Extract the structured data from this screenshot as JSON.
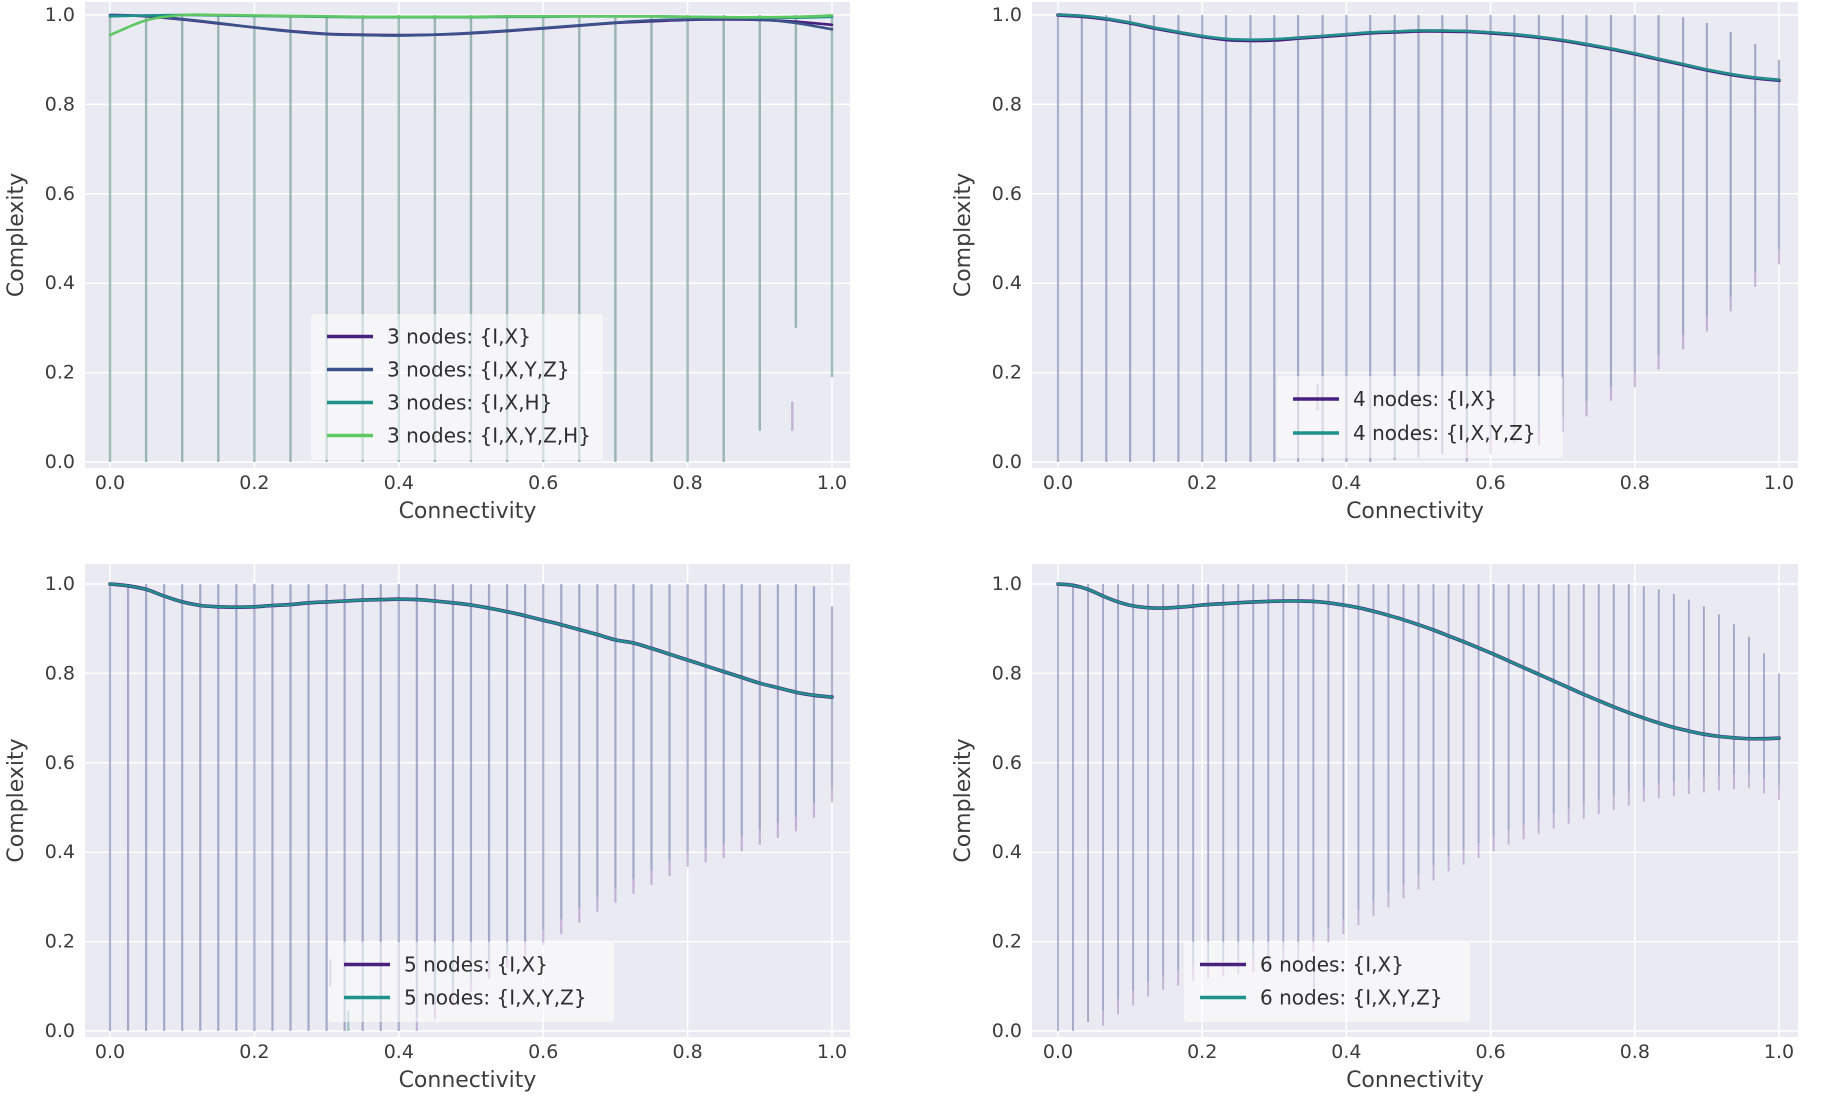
{
  "figure": {
    "background": "#ffffff",
    "plot_bg": "#eaeaf2",
    "grid_color": "#ffffff",
    "text_color": "#3d3d3d",
    "legend_text_color": "#2f2f2f",
    "legend_bg": "rgba(255,255,255,0.55)",
    "accent_tip_color": "rgba(158,122,182,0.5)"
  },
  "chart_data": [
    {
      "id": "3-nodes",
      "type": "line",
      "xlabel": "Connectivity",
      "ylabel": "Complexity",
      "xlim": [
        0,
        1
      ],
      "ylim": [
        0,
        1
      ],
      "xticks": [
        "0.0",
        "0.2",
        "0.4",
        "0.6",
        "0.8",
        "1.0"
      ],
      "yticks": [
        "0.0",
        "0.2",
        "0.4",
        "0.6",
        "0.8",
        "1.0"
      ],
      "grid": true,
      "legend_position": "lower center",
      "x": [
        0,
        0.05,
        0.1,
        0.15,
        0.2,
        0.25,
        0.3,
        0.35,
        0.4,
        0.45,
        0.5,
        0.55,
        0.6,
        0.65,
        0.7,
        0.75,
        0.8,
        0.85,
        0.9,
        0.95,
        1
      ],
      "series": [
        {
          "name": "3 nodes: {I,X}",
          "color": "#48207e",
          "width": 2.6,
          "values": [
            1.0,
            0.997,
            0.99,
            0.981,
            0.972,
            0.964,
            0.958,
            0.956,
            0.955,
            0.956,
            0.959,
            0.964,
            0.97,
            0.976,
            0.982,
            0.986,
            0.989,
            0.99,
            0.989,
            0.985,
            0.978
          ]
        },
        {
          "name": "3 nodes: {I,X,Y,Z}",
          "color": "#3b528b",
          "width": 2.6,
          "values": [
            1.0,
            0.998,
            0.991,
            0.982,
            0.972,
            0.963,
            0.957,
            0.955,
            0.954,
            0.956,
            0.96,
            0.965,
            0.971,
            0.977,
            0.983,
            0.988,
            0.99,
            0.991,
            0.99,
            0.982,
            0.968
          ]
        },
        {
          "name": "3 nodes: {I,X,H}",
          "color": "#21918c",
          "width": 2.6,
          "values": [
            0.997,
            0.999,
            1.0,
            0.999,
            0.998,
            0.997,
            0.996,
            0.995,
            0.995,
            0.995,
            0.995,
            0.996,
            0.996,
            0.997,
            0.997,
            0.997,
            0.996,
            0.995,
            0.994,
            0.994,
            0.996
          ]
        },
        {
          "name": "3 nodes: {I,X,Y,Z,H}",
          "color": "#5ec962",
          "width": 2.6,
          "values": [
            0.955,
            0.988,
            1.0,
            1.0,
            0.999,
            0.998,
            0.997,
            0.996,
            0.996,
            0.996,
            0.996,
            0.997,
            0.997,
            0.997,
            0.997,
            0.997,
            0.996,
            0.995,
            0.995,
            0.996,
            0.999
          ]
        }
      ],
      "error_bars": {
        "color": "rgba(74,126,114,0.5)",
        "bar_width": 2.4,
        "tips": false,
        "low": [
          0,
          0,
          0,
          0,
          0,
          0,
          0,
          0,
          0,
          0,
          0,
          0,
          0,
          0,
          0,
          0,
          0,
          0,
          0.07,
          0.3,
          0.19
        ],
        "high": [
          1,
          1,
          1,
          1,
          1,
          1,
          1,
          1,
          1,
          1,
          1,
          1,
          1,
          1,
          1,
          1,
          1,
          1,
          1,
          1,
          1
        ]
      },
      "accent_marks": [
        {
          "x": 0.945,
          "y0": 0.07,
          "y1": 0.135
        }
      ]
    },
    {
      "id": "4-nodes",
      "type": "line",
      "xlabel": "Connectivity",
      "ylabel": "Complexity",
      "xlim": [
        0,
        1
      ],
      "ylim": [
        0,
        1
      ],
      "xticks": [
        "0.0",
        "0.2",
        "0.4",
        "0.6",
        "0.8",
        "1.0"
      ],
      "yticks": [
        "0.0",
        "0.2",
        "0.4",
        "0.6",
        "0.8",
        "1.0"
      ],
      "grid": true,
      "legend_position": "lower center",
      "x": [
        0,
        0.033,
        0.067,
        0.1,
        0.133,
        0.167,
        0.2,
        0.233,
        0.267,
        0.3,
        0.333,
        0.367,
        0.4,
        0.433,
        0.467,
        0.5,
        0.533,
        0.567,
        0.6,
        0.633,
        0.667,
        0.7,
        0.733,
        0.767,
        0.8,
        0.833,
        0.867,
        0.9,
        0.933,
        0.967,
        1
      ],
      "series": [
        {
          "name": "4 nodes: {I,X}",
          "color": "#48207e",
          "width": 3.6,
          "values": [
            1.0,
            0.997,
            0.991,
            0.982,
            0.971,
            0.961,
            0.952,
            0.945,
            0.943,
            0.944,
            0.948,
            0.952,
            0.956,
            0.96,
            0.962,
            0.964,
            0.964,
            0.963,
            0.96,
            0.956,
            0.95,
            0.943,
            0.934,
            0.924,
            0.913,
            0.901,
            0.889,
            0.877,
            0.867,
            0.859,
            0.854
          ]
        },
        {
          "name": "4 nodes: {I,X,Y,Z}",
          "color": "#21918c",
          "width": 2.5,
          "values": [
            1.0,
            0.998,
            0.992,
            0.983,
            0.972,
            0.962,
            0.953,
            0.947,
            0.945,
            0.946,
            0.949,
            0.953,
            0.957,
            0.961,
            0.963,
            0.965,
            0.965,
            0.964,
            0.961,
            0.957,
            0.951,
            0.944,
            0.935,
            0.925,
            0.914,
            0.902,
            0.89,
            0.878,
            0.868,
            0.86,
            0.855
          ]
        }
      ],
      "error_bars": {
        "color": "rgba(84,98,150,0.48)",
        "bar_width": 2.2,
        "tips": true,
        "low": [
          0,
          0,
          0,
          0,
          0,
          0,
          0,
          0,
          0,
          0,
          0,
          0,
          0,
          0,
          0.005,
          0.01,
          0.017,
          0.03,
          0.05,
          0.075,
          0.07,
          0.1,
          0.135,
          0.17,
          0.2,
          0.24,
          0.285,
          0.325,
          0.37,
          0.425,
          0.475
        ],
        "high": [
          1,
          1,
          1,
          1,
          1,
          1,
          1,
          1,
          1,
          1,
          1,
          1,
          1,
          1,
          1,
          1,
          1,
          1,
          1,
          1,
          1,
          1,
          1,
          1,
          1,
          1,
          0.995,
          0.982,
          0.962,
          0.935,
          0.9
        ]
      },
      "accent_marks": [
        {
          "x": 0.36,
          "y0": 0.115,
          "y1": 0.175
        }
      ]
    },
    {
      "id": "5-nodes",
      "type": "line",
      "xlabel": "Connectivity",
      "ylabel": "Complexity",
      "xlim": [
        0,
        1
      ],
      "ylim": [
        0,
        1
      ],
      "xticks": [
        "0.0",
        "0.2",
        "0.4",
        "0.6",
        "0.8",
        "1.0"
      ],
      "yticks": [
        "0.0",
        "0.2",
        "0.4",
        "0.6",
        "0.8",
        "1.0"
      ],
      "grid": true,
      "legend_position": "lower center",
      "x": [
        0,
        0.025,
        0.05,
        0.075,
        0.1,
        0.125,
        0.15,
        0.175,
        0.2,
        0.225,
        0.25,
        0.275,
        0.3,
        0.325,
        0.35,
        0.375,
        0.4,
        0.425,
        0.45,
        0.475,
        0.5,
        0.525,
        0.55,
        0.575,
        0.6,
        0.625,
        0.65,
        0.675,
        0.7,
        0.725,
        0.75,
        0.775,
        0.8,
        0.825,
        0.85,
        0.875,
        0.9,
        0.925,
        0.95,
        0.975,
        1
      ],
      "series": [
        {
          "name": "5 nodes: {I,X}",
          "color": "#48207e",
          "width": 3.6,
          "values": [
            1.0,
            0.996,
            0.988,
            0.973,
            0.96,
            0.952,
            0.949,
            0.948,
            0.949,
            0.952,
            0.954,
            0.958,
            0.96,
            0.962,
            0.964,
            0.965,
            0.966,
            0.965,
            0.962,
            0.958,
            0.953,
            0.946,
            0.938,
            0.929,
            0.919,
            0.909,
            0.898,
            0.887,
            0.875,
            0.868,
            0.856,
            0.843,
            0.83,
            0.817,
            0.804,
            0.791,
            0.778,
            0.768,
            0.758,
            0.751,
            0.747
          ]
        },
        {
          "name": "5 nodes: {I,X,Y,Z}",
          "color": "#21918c",
          "width": 2.5,
          "values": [
            1.0,
            0.996,
            0.988,
            0.973,
            0.96,
            0.952,
            0.949,
            0.948,
            0.949,
            0.952,
            0.954,
            0.958,
            0.96,
            0.962,
            0.964,
            0.965,
            0.966,
            0.965,
            0.962,
            0.958,
            0.953,
            0.946,
            0.938,
            0.929,
            0.919,
            0.909,
            0.898,
            0.887,
            0.875,
            0.868,
            0.856,
            0.843,
            0.83,
            0.817,
            0.804,
            0.791,
            0.778,
            0.768,
            0.758,
            0.751,
            0.747
          ]
        }
      ],
      "error_bars": {
        "color": "rgba(84,98,150,0.48)",
        "bar_width": 2.2,
        "tips": true,
        "low": [
          0,
          0,
          0,
          0,
          0,
          0,
          0,
          0,
          0,
          0,
          0,
          0,
          0,
          0,
          0,
          0,
          0,
          0.03,
          0.06,
          0.09,
          0.12,
          0.15,
          0.175,
          0.2,
          0.225,
          0.25,
          0.275,
          0.3,
          0.32,
          0.34,
          0.36,
          0.38,
          0.4,
          0.41,
          0.42,
          0.435,
          0.45,
          0.465,
          0.48,
          0.51,
          0.545
        ],
        "high": [
          1,
          1,
          1,
          1,
          1,
          1,
          1,
          1,
          1,
          1,
          1,
          1,
          1,
          1,
          1,
          1,
          1,
          1,
          1,
          1,
          1,
          1,
          1,
          1,
          1,
          1,
          1,
          1,
          1,
          1,
          1,
          1,
          1,
          1,
          1,
          1,
          1,
          1,
          1,
          0.995,
          0.95
        ]
      },
      "accent_marks": [
        {
          "x": 0.305,
          "y0": 0.1,
          "y1": 0.16
        },
        {
          "x": 0.33,
          "y0": 0,
          "y1": 0.045,
          "color": "rgba(74,150,146,0.5)"
        }
      ]
    },
    {
      "id": "6-nodes",
      "type": "line",
      "xlabel": "Connectivity",
      "ylabel": "Complexity",
      "xlim": [
        0,
        1
      ],
      "ylim": [
        0,
        1
      ],
      "xticks": [
        "0.0",
        "0.2",
        "0.4",
        "0.6",
        "0.8",
        "1.0"
      ],
      "yticks": [
        "0.0",
        "0.2",
        "0.4",
        "0.6",
        "0.8",
        "1.0"
      ],
      "grid": true,
      "legend_position": "lower center",
      "x": [
        0,
        0.0208,
        0.0417,
        0.0625,
        0.0833,
        0.1042,
        0.125,
        0.1458,
        0.1667,
        0.1875,
        0.2083,
        0.2292,
        0.25,
        0.2708,
        0.2917,
        0.3125,
        0.3333,
        0.3542,
        0.375,
        0.3958,
        0.4167,
        0.4375,
        0.4583,
        0.4792,
        0.5,
        0.5208,
        0.5417,
        0.5625,
        0.5833,
        0.6042,
        0.625,
        0.6458,
        0.6667,
        0.6875,
        0.7083,
        0.7292,
        0.75,
        0.7708,
        0.7917,
        0.8125,
        0.8333,
        0.8542,
        0.875,
        0.8958,
        0.9167,
        0.9375,
        0.9583,
        0.9792,
        1
      ],
      "series": [
        {
          "name": "6 nodes: {I,X}",
          "color": "#48207e",
          "width": 3.6,
          "values": [
            1.0,
            0.997,
            0.988,
            0.973,
            0.96,
            0.951,
            0.947,
            0.946,
            0.948,
            0.951,
            0.954,
            0.956,
            0.958,
            0.96,
            0.961,
            0.962,
            0.962,
            0.961,
            0.958,
            0.953,
            0.947,
            0.939,
            0.93,
            0.92,
            0.909,
            0.897,
            0.884,
            0.871,
            0.857,
            0.843,
            0.828,
            0.813,
            0.798,
            0.783,
            0.768,
            0.753,
            0.739,
            0.725,
            0.712,
            0.7,
            0.689,
            0.679,
            0.671,
            0.664,
            0.659,
            0.656,
            0.654,
            0.654,
            0.655
          ]
        },
        {
          "name": "6 nodes: {I,X,Y,Z}",
          "color": "#21918c",
          "width": 2.5,
          "values": [
            1.0,
            0.997,
            0.988,
            0.973,
            0.96,
            0.951,
            0.947,
            0.946,
            0.948,
            0.951,
            0.954,
            0.956,
            0.958,
            0.96,
            0.961,
            0.962,
            0.962,
            0.961,
            0.958,
            0.953,
            0.947,
            0.939,
            0.93,
            0.92,
            0.909,
            0.897,
            0.884,
            0.871,
            0.857,
            0.843,
            0.828,
            0.813,
            0.798,
            0.783,
            0.768,
            0.753,
            0.739,
            0.725,
            0.712,
            0.7,
            0.689,
            0.679,
            0.671,
            0.664,
            0.659,
            0.656,
            0.654,
            0.654,
            0.655
          ]
        }
      ],
      "error_bars": {
        "color": "rgba(84,98,150,0.48)",
        "bar_width": 1.9,
        "tips": true,
        "low": [
          0,
          0,
          0.02,
          0.045,
          0.07,
          0.09,
          0.11,
          0.125,
          0.135,
          0.145,
          0.15,
          0.155,
          0.16,
          0.165,
          0.17,
          0.18,
          0.19,
          0.21,
          0.23,
          0.25,
          0.27,
          0.29,
          0.31,
          0.33,
          0.35,
          0.37,
          0.39,
          0.405,
          0.42,
          0.435,
          0.45,
          0.462,
          0.474,
          0.486,
          0.497,
          0.508,
          0.518,
          0.528,
          0.537,
          0.546,
          0.553,
          0.558,
          0.563,
          0.567,
          0.571,
          0.574,
          0.576,
          0.565,
          0.55
        ],
        "high": [
          1,
          1,
          1,
          1,
          1,
          1,
          1,
          1,
          1,
          1,
          1,
          1,
          1,
          1,
          1,
          1,
          1,
          1,
          1,
          1,
          1,
          1,
          1,
          1,
          1,
          1,
          1,
          1,
          1,
          1,
          1,
          1,
          1,
          1,
          1,
          1,
          1,
          1,
          1,
          0.995,
          0.988,
          0.978,
          0.965,
          0.95,
          0.932,
          0.91,
          0.882,
          0.845,
          0.8
        ]
      },
      "accent_marks": [
        {
          "x": 0.355,
          "y0": 0.095,
          "y1": 0.15
        }
      ]
    }
  ]
}
